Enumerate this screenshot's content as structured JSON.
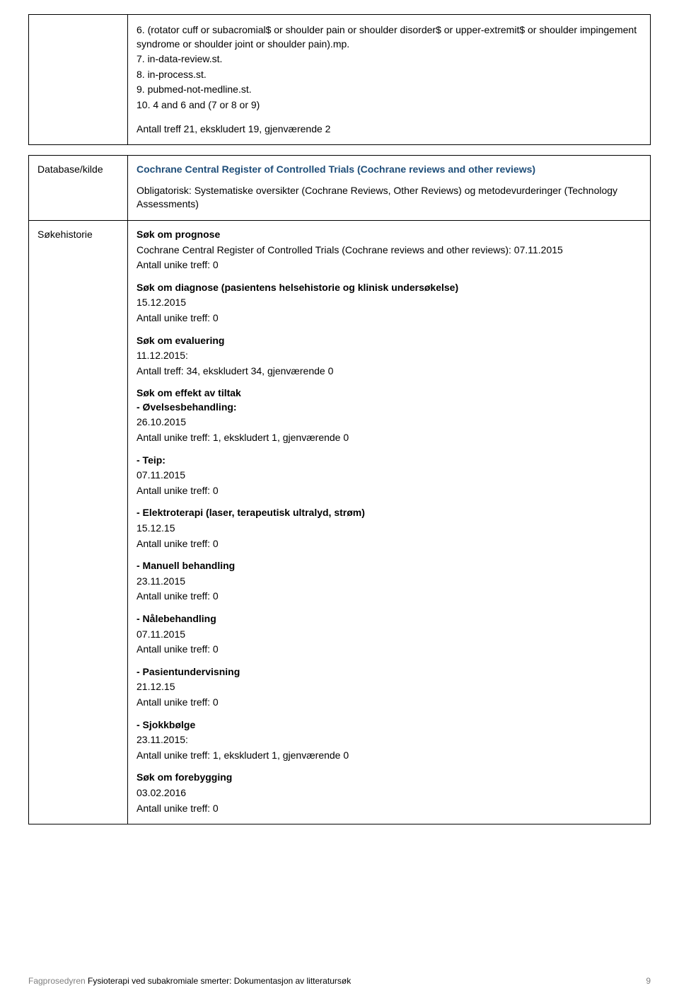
{
  "topCell": {
    "lines": [
      "6. (rotator cuff or subacromial$ or shoulder pain or shoulder disorder$ or upper-extremit$ or shoulder impingement syndrome or shoulder joint or shoulder pain).mp.",
      "7. in-data-review.st.",
      "8. in-process.st.",
      "9. pubmed-not-medline.st.",
      "10. 4 and 6 and (7 or 8 or 9)"
    ],
    "result": "Antall treff 21, ekskludert 19, gjenværende 2"
  },
  "row1": {
    "leftLabel": "Database/kilde",
    "title": "Cochrane Central Register of Controlled Trials (Cochrane reviews and other reviews)",
    "subtext": "Obligatorisk: Systematiske oversikter (Cochrane Reviews, Other Reviews) og metodevurderinger (Technology Assessments)"
  },
  "row2": {
    "leftLabel": "Søkehistorie",
    "sections": [
      {
        "heading": "Søk om prognose",
        "lines": [
          "Cochrane Central Register of Controlled Trials (Cochrane reviews and other reviews): 07.11.2015",
          "Antall unike treff: 0"
        ]
      },
      {
        "heading": "Søk om diagnose (pasientens helsehistorie og klinisk undersøkelse)",
        "lines": [
          "15.12.2015",
          "Antall unike treff: 0"
        ]
      },
      {
        "heading": "Søk om evaluering",
        "lines": [
          "11.12.2015:",
          "Antall treff: 34, ekskludert 34, gjenværende 0"
        ]
      },
      {
        "heading": "Søk om effekt av tiltak",
        "lines": []
      },
      {
        "heading": "- Øvelsesbehandling:",
        "lines": [
          "26.10.2015",
          "Antall unike treff: 1, ekskludert 1, gjenværende 0"
        ]
      },
      {
        "heading": " - Teip:",
        "lines": [
          "07.11.2015",
          "Antall unike treff: 0"
        ]
      },
      {
        "heading": "- Elektroterapi (laser, terapeutisk ultralyd, strøm)",
        "lines": [
          "15.12.15",
          "Antall unike treff: 0"
        ]
      },
      {
        "heading": "- Manuell behandling",
        "lines": [
          "23.11.2015",
          "Antall unike treff: 0"
        ]
      },
      {
        "heading": "- Nålebehandling",
        "lines": [
          "07.11.2015",
          "Antall unike treff: 0"
        ]
      },
      {
        "heading": "- Pasientundervisning",
        "lines": [
          " 21.12.15",
          "Antall unike treff: 0"
        ]
      },
      {
        "heading": "- Sjokkbølge",
        "lines": [
          "23.11.2015:",
          "Antall unike treff: 1, ekskludert 1, gjenværende 0"
        ]
      },
      {
        "heading": "Søk om forebygging",
        "lines": [
          "03.02.2016",
          "Antall unike treff: 0"
        ]
      }
    ]
  },
  "footer": {
    "greyPrefix": "Fagprosedyren ",
    "blackTitle": "Fysioterapi ved subakromiale smerter: Dokumentasjon av litteratursøk",
    "pageNum": "9"
  }
}
